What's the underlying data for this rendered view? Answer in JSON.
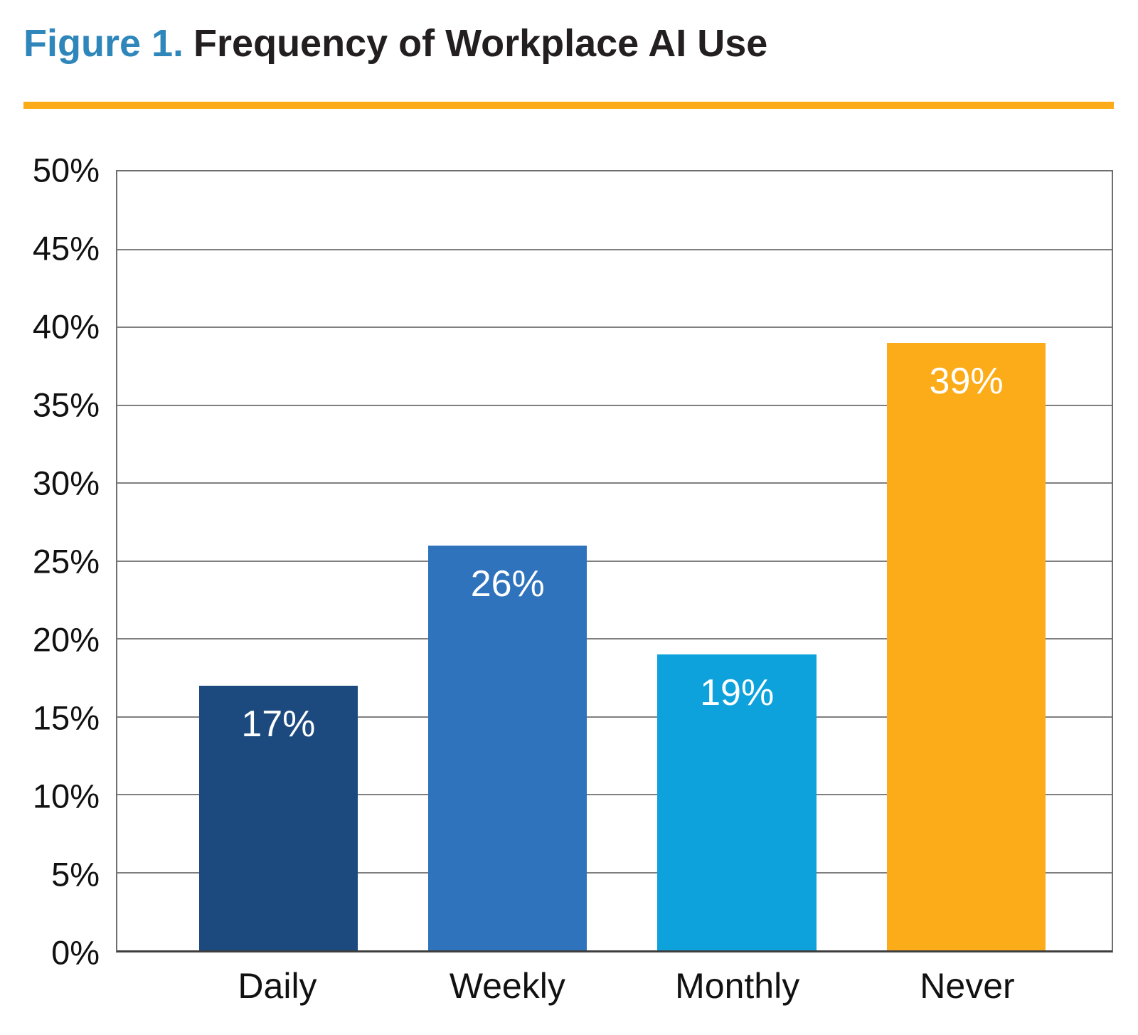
{
  "figure": {
    "label": "Figure 1.",
    "title": "Frequency of Workplace AI Use"
  },
  "palette": {
    "figure_label_blue": "#2E86BA",
    "title_black": "#231F20",
    "rule_orange": "#FBAC18",
    "gridline_gray": "#7F7F7F",
    "axis_text_black": "#111111",
    "value_label_white": "#FFFFFF"
  },
  "chart_data": {
    "type": "bar",
    "title": "Frequency of Workplace AI Use",
    "categories": [
      "Daily",
      "Weekly",
      "Monthly",
      "Never"
    ],
    "values": [
      17,
      26,
      19,
      39
    ],
    "value_labels": [
      "17%",
      "26%",
      "19%",
      "39%"
    ],
    "bar_colors": [
      "#1C4A7E",
      "#2F73BD",
      "#0DA2DB",
      "#FBAC18"
    ],
    "xlabel": "",
    "ylabel": "",
    "ylim": [
      0,
      50
    ],
    "ytick_step": 5,
    "ytick_labels": [
      "0%",
      "5%",
      "10%",
      "15%",
      "20%",
      "25%",
      "30%",
      "35%",
      "40%",
      "45%",
      "50%"
    ],
    "grid": true,
    "legend_position": "none"
  }
}
